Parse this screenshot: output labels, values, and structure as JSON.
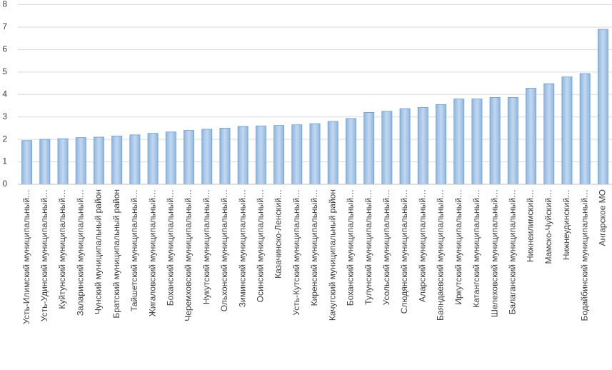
{
  "chart_data": {
    "type": "bar",
    "categories": [
      "Усть-Илимский муниципальный…",
      "Усть-Удинский муниципальный…",
      "Куйтунский муниципальный…",
      "Заларинский муниципальный…",
      "Чунский муниципальный район",
      "Братский муниципальный район",
      "Тайшетский муниципальный…",
      "Жигаловский муниципальный…",
      "Боханский муниципальный…",
      "Черемховский муниципальный…",
      "Нукутский муниципальный…",
      "Ольхонский муниципальный…",
      "Зиминский муниципальный…",
      "Осинский муниципальный…",
      "Казачинско-Ленский…",
      "Усть-Кутский муниципальный…",
      "Киренский муниципальный…",
      "Качугский муниципальный район",
      "Боханский муниципальный…",
      "Тулунский муниципальный…",
      "Усольский муниципальный…",
      "Слюдянский муниципальный…",
      "Аларский муниципальный…",
      "Баяндаевский муниципальный…",
      "Иркутский муниципальный…",
      "Катангский муниципальный…",
      "Шелеховский муниципальный…",
      "Балаганский муниципальный…",
      "Нижнеилимский…",
      "Мамско-Чуйский…",
      "Нижнеудинский…",
      "Бодайбинский муниципальный…",
      "Ангарское МО"
    ],
    "values": [
      1.95,
      2.0,
      2.03,
      2.08,
      2.1,
      2.15,
      2.2,
      2.27,
      2.33,
      2.4,
      2.45,
      2.5,
      2.58,
      2.6,
      2.62,
      2.65,
      2.7,
      2.8,
      2.93,
      3.2,
      3.25,
      3.37,
      3.42,
      3.55,
      3.8,
      3.8,
      3.87,
      3.87,
      4.28,
      4.48,
      4.78,
      4.93,
      6.9
    ],
    "color": "#a9c8ea",
    "ylim": [
      0,
      8
    ],
    "yticks": [
      0,
      1,
      2,
      3,
      4,
      5,
      6,
      7,
      8
    ],
    "grid": true
  }
}
